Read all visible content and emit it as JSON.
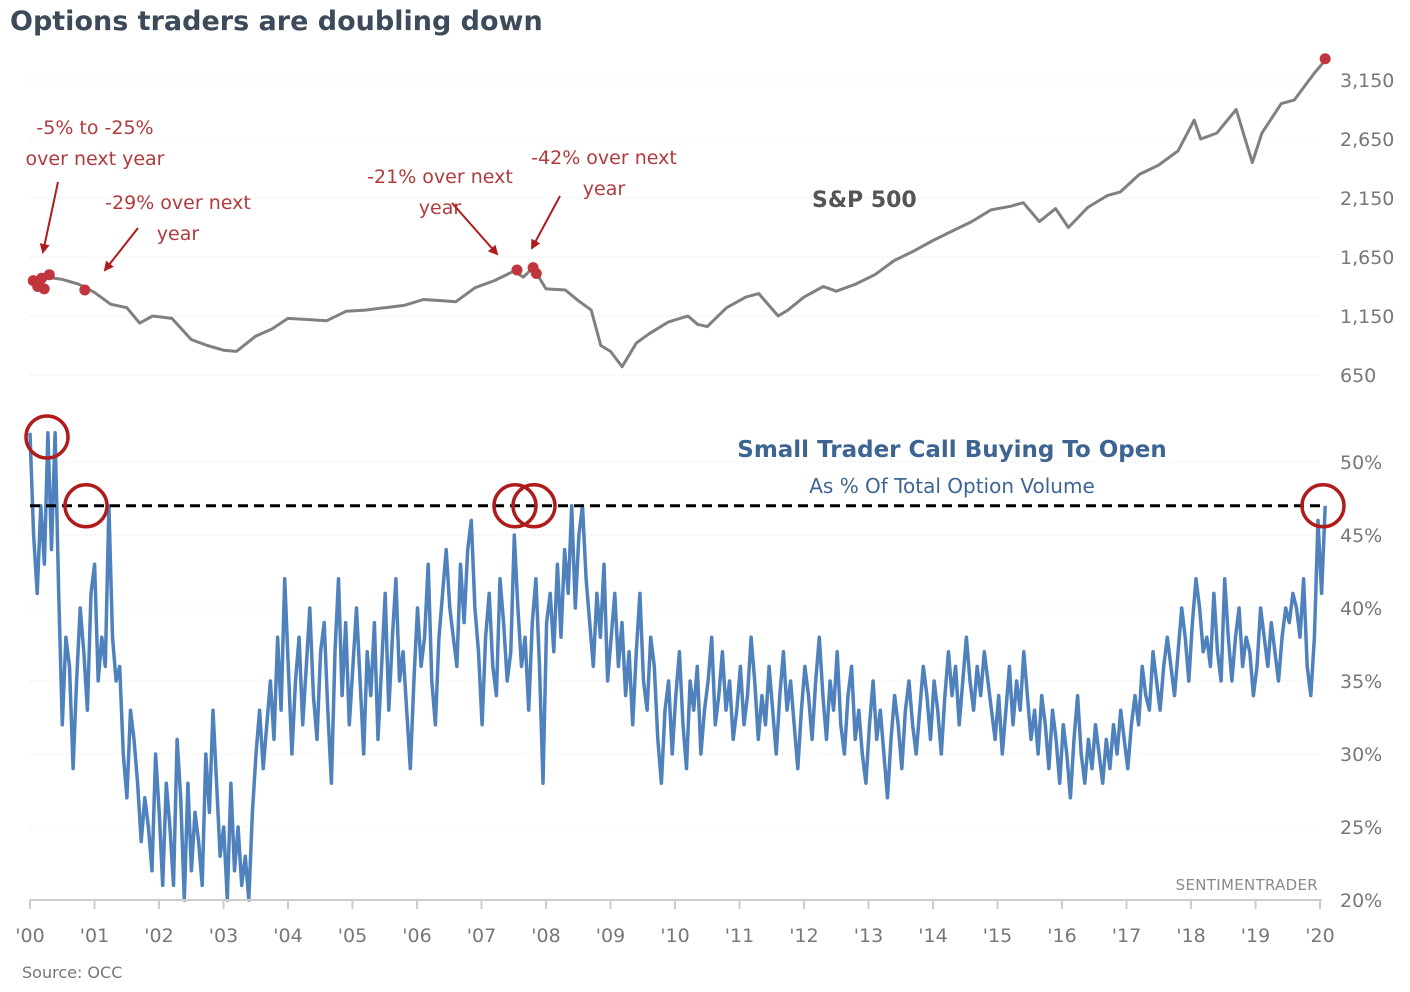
{
  "title": "Options traders are doubling down",
  "source": "Source: OCC",
  "watermark": "SENTIMENTRADER",
  "colors": {
    "spx_line": "#808080",
    "signal_dot": "#c0363c",
    "annotation": "#b03a3e",
    "call_line": "#4f81bd",
    "circle": "#b01c1c",
    "threshold": "#000000",
    "axis": "#cccccc"
  },
  "chart_data": [
    {
      "type": "line",
      "name": "S&P 500",
      "label": "S&P 500",
      "ylim": [
        650,
        3400
      ],
      "yticks": [
        650,
        1150,
        1650,
        2150,
        2650,
        3150
      ],
      "ytick_labels": [
        "650",
        "1,150",
        "1,650",
        "2,150",
        "2,650",
        "3,150"
      ],
      "x": [
        2000.0,
        2000.25,
        2000.5,
        2000.75,
        2001.0,
        2001.25,
        2001.5,
        2001.7,
        2001.9,
        2002.2,
        2002.5,
        2002.75,
        2003.0,
        2003.2,
        2003.5,
        2003.75,
        2004.0,
        2004.3,
        2004.6,
        2004.9,
        2005.2,
        2005.5,
        2005.8,
        2006.1,
        2006.4,
        2006.6,
        2006.9,
        2007.2,
        2007.5,
        2007.65,
        2007.8,
        2008.0,
        2008.3,
        2008.5,
        2008.7,
        2008.85,
        2009.0,
        2009.18,
        2009.4,
        2009.6,
        2009.9,
        2010.2,
        2010.35,
        2010.5,
        2010.8,
        2011.1,
        2011.3,
        2011.6,
        2011.75,
        2012.0,
        2012.3,
        2012.5,
        2012.8,
        2013.1,
        2013.4,
        2013.7,
        2014.0,
        2014.3,
        2014.6,
        2014.9,
        2015.2,
        2015.4,
        2015.65,
        2015.9,
        2016.1,
        2016.4,
        2016.7,
        2016.9,
        2017.2,
        2017.5,
        2017.8,
        2018.05,
        2018.15,
        2018.4,
        2018.7,
        2018.95,
        2019.1,
        2019.4,
        2019.6,
        2019.9,
        2020.1
      ],
      "values": [
        1450,
        1480,
        1460,
        1420,
        1350,
        1250,
        1220,
        1090,
        1150,
        1130,
        950,
        900,
        860,
        850,
        980,
        1040,
        1130,
        1120,
        1110,
        1190,
        1200,
        1220,
        1240,
        1290,
        1280,
        1270,
        1390,
        1450,
        1530,
        1480,
        1560,
        1380,
        1370,
        1280,
        1200,
        900,
        850,
        720,
        920,
        1000,
        1100,
        1150,
        1080,
        1060,
        1220,
        1310,
        1340,
        1150,
        1200,
        1310,
        1400,
        1360,
        1420,
        1500,
        1620,
        1700,
        1790,
        1870,
        1950,
        2050,
        2080,
        2110,
        1950,
        2060,
        1900,
        2070,
        2170,
        2200,
        2350,
        2430,
        2550,
        2810,
        2650,
        2700,
        2900,
        2450,
        2700,
        2950,
        2980,
        3200,
        3330
      ],
      "signals": [
        {
          "x": 2000.05,
          "value": 1450
        },
        {
          "x": 2000.12,
          "value": 1400
        },
        {
          "x": 2000.18,
          "value": 1470
        },
        {
          "x": 2000.22,
          "value": 1380
        },
        {
          "x": 2000.3,
          "value": 1500
        },
        {
          "x": 2000.85,
          "value": 1370
        },
        {
          "x": 2007.55,
          "value": 1540
        },
        {
          "x": 2007.8,
          "value": 1560
        },
        {
          "x": 2007.85,
          "value": 1510
        },
        {
          "x": 2020.08,
          "value": 3330
        }
      ],
      "annotations": [
        {
          "lines": [
            "-5% to -25%",
            "over next year"
          ],
          "points_to": 2000.2
        },
        {
          "lines": [
            "-29% over next",
            "year"
          ],
          "points_to": 2001.0
        },
        {
          "lines": [
            "-21% over next",
            "year"
          ],
          "points_to": 2007.55
        },
        {
          "lines": [
            "-42% over next",
            "year"
          ],
          "points_to": 2007.8
        }
      ]
    },
    {
      "type": "line",
      "name": "Small Trader Call Buying To Open",
      "title": "Small Trader Call Buying To Open",
      "subtitle": "As % Of Total Option Volume",
      "ylim": [
        20,
        52
      ],
      "yticks": [
        20,
        25,
        30,
        35,
        40,
        45,
        50
      ],
      "ytick_labels": [
        "20%",
        "25%",
        "30%",
        "35%",
        "40%",
        "45%",
        "50%"
      ],
      "threshold": 47,
      "xlim": [
        2000,
        2020.1
      ],
      "xticks": [
        2000,
        2001,
        2002,
        2003,
        2004,
        2005,
        2006,
        2007,
        2008,
        2009,
        2010,
        2011,
        2012,
        2013,
        2014,
        2015,
        2016,
        2017,
        2018,
        2019,
        2020
      ],
      "xtick_labels": [
        "'00",
        "'01",
        "'02",
        "'03",
        "'04",
        "'05",
        "'06",
        "'07",
        "'08",
        "'09",
        "'10",
        "'11",
        "'12",
        "'13",
        "'14",
        "'15",
        "'16",
        "'17",
        "'18",
        "'19",
        "'20"
      ],
      "circled_x": [
        2000.2,
        2000.85,
        2007.55,
        2007.8,
        2020.08
      ],
      "x_start": 2000.0,
      "x_step": 0.02,
      "values": [
        52,
        45,
        41,
        47,
        43,
        52,
        44,
        52,
        41,
        32,
        38,
        36,
        29,
        35,
        40,
        37,
        33,
        41,
        43,
        35,
        38,
        36,
        47,
        38,
        35,
        36,
        30,
        27,
        33,
        31,
        28,
        24,
        27,
        25,
        22,
        30,
        26,
        21,
        28,
        25,
        21,
        31,
        27,
        20,
        28,
        22,
        26,
        24,
        21,
        30,
        26,
        33,
        28,
        23,
        25,
        20,
        28,
        22,
        25,
        21,
        23,
        20,
        26,
        30,
        33,
        29,
        32,
        35,
        31,
        38,
        33,
        42,
        36,
        30,
        35,
        38,
        32,
        36,
        40,
        34,
        31,
        37,
        39,
        33,
        28,
        37,
        42,
        34,
        39,
        32,
        36,
        40,
        35,
        30,
        37,
        34,
        39,
        31,
        36,
        41,
        33,
        38,
        42,
        35,
        37,
        33,
        29,
        35,
        40,
        36,
        38,
        43,
        35,
        32,
        38,
        41,
        44,
        40,
        38,
        36,
        43,
        39,
        44,
        46,
        40,
        37,
        32,
        38,
        41,
        36,
        34,
        42,
        39,
        35,
        37,
        45,
        40,
        36,
        38,
        33,
        39,
        42,
        36,
        28,
        39,
        41,
        37,
        43,
        38,
        44,
        41,
        47,
        40,
        45,
        47,
        42,
        39,
        36,
        41,
        38,
        43,
        35,
        38,
        41,
        36,
        39,
        34,
        37,
        32,
        37,
        41,
        35,
        33,
        38,
        36,
        31,
        28,
        33,
        35,
        30,
        34,
        37,
        32,
        29,
        35,
        33,
        36,
        30,
        33,
        35,
        38,
        32,
        34,
        37,
        33,
        35,
        31,
        33,
        36,
        32,
        34,
        38,
        35,
        31,
        34,
        32,
        36,
        33,
        30,
        34,
        37,
        33,
        35,
        32,
        29,
        33,
        36,
        34,
        31,
        35,
        38,
        34,
        31,
        35,
        33,
        37,
        32,
        30,
        34,
        36,
        31,
        33,
        30,
        28,
        32,
        35,
        31,
        33,
        30,
        27,
        31,
        34,
        32,
        29,
        33,
        35,
        32,
        30,
        33,
        36,
        34,
        31,
        35,
        33,
        30,
        34,
        37,
        34,
        36,
        32,
        35,
        38,
        35,
        33,
        36,
        34,
        37,
        35,
        33,
        31,
        34,
        30,
        33,
        36,
        32,
        35,
        33,
        37,
        34,
        31,
        33,
        30,
        34,
        32,
        29,
        33,
        31,
        28,
        32,
        30,
        27,
        31,
        34,
        30,
        28,
        31,
        29,
        32,
        30,
        28,
        31,
        29,
        32,
        30,
        33,
        31,
        29,
        32,
        34,
        32,
        36,
        34,
        33,
        37,
        35,
        33,
        36,
        38,
        36,
        34,
        37,
        40,
        38,
        35,
        39,
        42,
        40,
        37,
        38,
        36,
        41,
        37,
        35,
        42,
        38,
        35,
        38,
        40,
        36,
        38,
        37,
        34,
        36,
        40,
        38,
        36,
        39,
        37,
        35,
        38,
        40,
        39,
        41,
        40,
        38,
        42,
        36,
        34,
        38,
        46,
        41,
        47
      ]
    }
  ]
}
